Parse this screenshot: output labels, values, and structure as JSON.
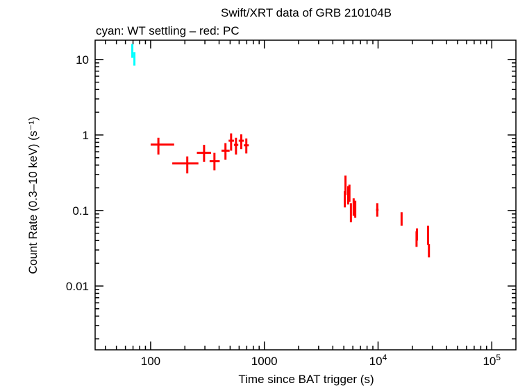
{
  "chart_data": {
    "type": "scatter",
    "title": "Swift/XRT data of GRB 210104B",
    "subtitle": "cyan: WT settling – red: PC",
    "xlabel": "Time since BAT trigger (s)",
    "ylabel": "Count Rate (0.3–10 keV) (s⁻¹)",
    "xscale": "log",
    "yscale": "log",
    "xlim": [
      32.5,
      163000
    ],
    "ylim": [
      0.00143,
      18
    ],
    "grid": false,
    "xticks": [
      {
        "value": 100,
        "label": "100"
      },
      {
        "value": 1000,
        "label": "1000"
      },
      {
        "value": 10000,
        "label": "10",
        "exp": "4"
      },
      {
        "value": 100000,
        "label": "10",
        "exp": "5"
      }
    ],
    "yticks": [
      {
        "value": 10,
        "label": "10"
      },
      {
        "value": 1,
        "label": "1"
      },
      {
        "value": 0.1,
        "label": "0.1"
      },
      {
        "value": 0.01,
        "label": "0.01"
      }
    ],
    "series": [
      {
        "color": "#00ffff",
        "columns": [
          "t",
          "t_lo",
          "t_hi",
          "rate",
          "rate_lo",
          "rate_hi"
        ],
        "points": [
          [
            69,
            68,
            70,
            13.2,
            10.5,
            16
          ],
          [
            72,
            71,
            73,
            10.2,
            8.3,
            12.5
          ]
        ]
      },
      {
        "color": "#ff0000",
        "columns": [
          "t",
          "t_lo",
          "t_hi",
          "rate",
          "rate_lo",
          "rate_hi"
        ],
        "points": [
          [
            117,
            100,
            161,
            0.745,
            0.55,
            0.92
          ],
          [
            210,
            155,
            263,
            0.42,
            0.31,
            0.52
          ],
          [
            295,
            255,
            340,
            0.58,
            0.44,
            0.74
          ],
          [
            364,
            330,
            405,
            0.45,
            0.34,
            0.58
          ],
          [
            455,
            420,
            495,
            0.62,
            0.47,
            0.78
          ],
          [
            510,
            485,
            540,
            0.84,
            0.62,
            1.05
          ],
          [
            563,
            540,
            590,
            0.74,
            0.55,
            0.92
          ],
          [
            627,
            595,
            660,
            0.84,
            0.65,
            1.02
          ],
          [
            694,
            660,
            730,
            0.73,
            0.57,
            0.9
          ],
          [
            5100,
            5000,
            5200,
            0.137,
            0.11,
            0.18
          ],
          [
            5170,
            5120,
            5220,
            0.228,
            0.16,
            0.29
          ],
          [
            5460,
            5400,
            5520,
            0.16,
            0.12,
            0.21
          ],
          [
            5600,
            5540,
            5660,
            0.173,
            0.13,
            0.22
          ],
          [
            5770,
            5700,
            5840,
            0.094,
            0.07,
            0.125
          ],
          [
            6100,
            6030,
            6170,
            0.114,
            0.085,
            0.145
          ],
          [
            6300,
            6220,
            6380,
            0.102,
            0.08,
            0.135
          ],
          [
            9840,
            9600,
            10100,
            0.102,
            0.083,
            0.125
          ],
          [
            16100,
            15900,
            16300,
            0.078,
            0.063,
            0.095
          ],
          [
            21800,
            21600,
            22000,
            0.042,
            0.033,
            0.053
          ],
          [
            22000,
            21800,
            22200,
            0.05,
            0.04,
            0.058
          ],
          [
            27500,
            27300,
            27700,
            0.049,
            0.035,
            0.063
          ],
          [
            28000,
            27800,
            28300,
            0.029,
            0.024,
            0.036
          ]
        ]
      }
    ]
  }
}
